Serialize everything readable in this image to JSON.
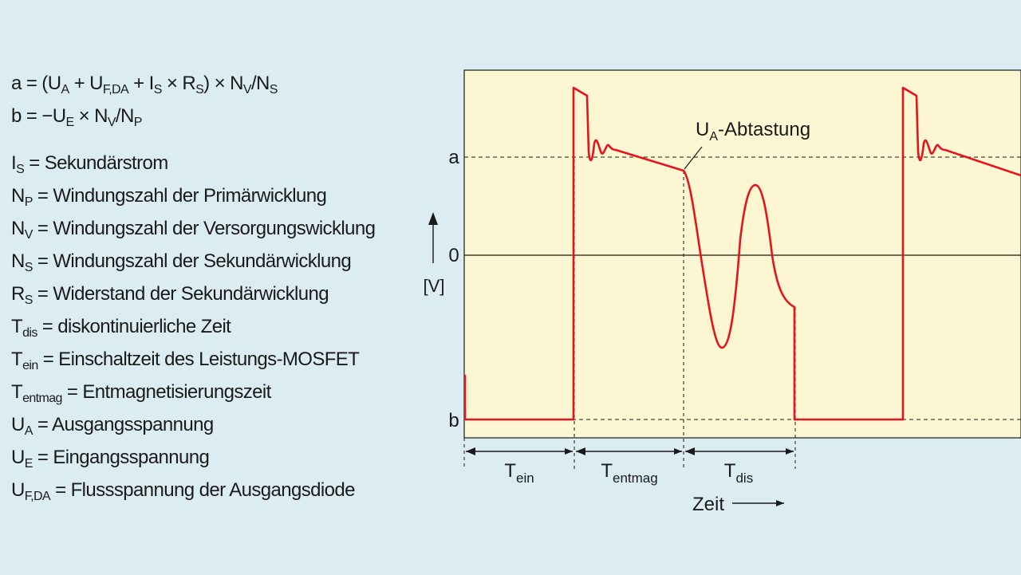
{
  "formulas": [
    {
      "id": "a",
      "parts": [
        {
          "t": "a = (U"
        },
        {
          "s": "A"
        },
        {
          "t": " + U"
        },
        {
          "s": "F,DA"
        },
        {
          "t": " + I"
        },
        {
          "s": "S"
        },
        {
          "t": " × R"
        },
        {
          "s": "S"
        },
        {
          "t": ") × N"
        },
        {
          "s": "V"
        },
        {
          "t": "/N"
        },
        {
          "s": "S"
        }
      ]
    },
    {
      "id": "b",
      "parts": [
        {
          "t": "b = −U"
        },
        {
          "s": "E"
        },
        {
          "t": " × N"
        },
        {
          "s": "V"
        },
        {
          "t": "/N"
        },
        {
          "s": "P"
        }
      ]
    }
  ],
  "definitions": [
    {
      "id": "is",
      "parts": [
        {
          "t": "I"
        },
        {
          "s": "S"
        },
        {
          "t": " = Sekundärstrom"
        }
      ]
    },
    {
      "id": "np",
      "parts": [
        {
          "t": "N"
        },
        {
          "s": "P"
        },
        {
          "t": " = Windungszahl der Primärwicklung"
        }
      ]
    },
    {
      "id": "nv",
      "parts": [
        {
          "t": "N"
        },
        {
          "s": "V"
        },
        {
          "t": " = Windungszahl der Versorgungswicklung"
        }
      ]
    },
    {
      "id": "ns",
      "parts": [
        {
          "t": "N"
        },
        {
          "s": "S"
        },
        {
          "t": " = Windungszahl der Sekundärwicklung"
        }
      ]
    },
    {
      "id": "rs",
      "parts": [
        {
          "t": "R"
        },
        {
          "s": "S"
        },
        {
          "t": " = Widerstand der Sekundärwicklung"
        }
      ]
    },
    {
      "id": "tdis",
      "parts": [
        {
          "t": "T"
        },
        {
          "s": "dis"
        },
        {
          "t": " = diskontinuierliche Zeit"
        }
      ]
    },
    {
      "id": "tein",
      "parts": [
        {
          "t": "T"
        },
        {
          "s": "ein"
        },
        {
          "t": " = Einschaltzeit des Leistungs-MOSFET"
        }
      ]
    },
    {
      "id": "tentmag",
      "parts": [
        {
          "t": "T"
        },
        {
          "s": "entmag"
        },
        {
          "t": " = Entmagnetisierungszeit"
        }
      ]
    },
    {
      "id": "ua",
      "parts": [
        {
          "t": "U"
        },
        {
          "s": "A"
        },
        {
          "t": " = Ausgangsspannung"
        }
      ]
    },
    {
      "id": "ue",
      "parts": [
        {
          "t": "U"
        },
        {
          "s": "E"
        },
        {
          "t": " = Eingangsspannung"
        }
      ]
    },
    {
      "id": "ufda",
      "parts": [
        {
          "t": "U"
        },
        {
          "s": "F,DA"
        },
        {
          "t": " = Flussspannung der Ausgangsdiode"
        }
      ]
    }
  ],
  "diagram": {
    "y_level_a": "a",
    "y_level_zero": "0",
    "y_level_b": "b",
    "y_unit": "[V]",
    "sample_label": {
      "base": "U",
      "sub": "A",
      "rest": "-Abtastung"
    },
    "intervals": [
      {
        "base": "T",
        "sub": "ein"
      },
      {
        "base": "T",
        "sub": "entmag"
      },
      {
        "base": "T",
        "sub": "dis"
      }
    ],
    "x_label": "Zeit",
    "colors": {
      "panel": "#fdf6d2",
      "signal": "#e3141c",
      "background": "#dcecf3"
    }
  }
}
